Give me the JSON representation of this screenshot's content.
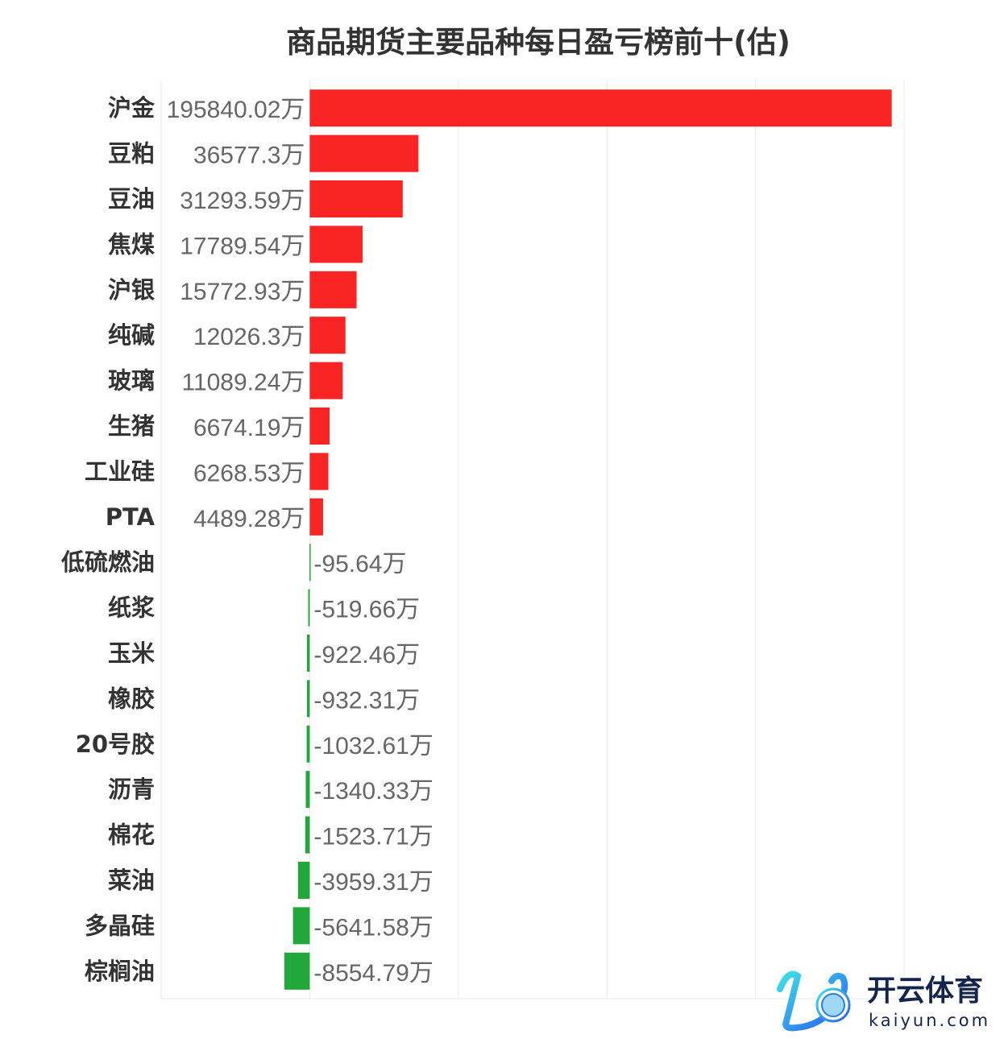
{
  "chart_data": {
    "type": "bar",
    "orientation": "horizontal",
    "title": "商品期货主要品种每日盈亏榜前十(估)",
    "unit_suffix": "万",
    "categories": [
      "沪金",
      "豆粕",
      "豆油",
      "焦煤",
      "沪银",
      "纯碱",
      "玻璃",
      "生猪",
      "工业硅",
      "PTA",
      "低硫燃油",
      "纸浆",
      "玉米",
      "橡胶",
      "20号胶",
      "沥青",
      "棉花",
      "菜油",
      "多晶硅",
      "棕榈油"
    ],
    "values": [
      195840.02,
      36577.3,
      31293.59,
      17789.54,
      15772.93,
      12026.3,
      11089.24,
      6674.19,
      6268.53,
      4489.28,
      -95.64,
      -519.66,
      -922.46,
      -932.31,
      -1032.61,
      -1340.33,
      -1523.71,
      -3959.31,
      -5641.58,
      -8554.79
    ],
    "value_labels": [
      "195840.02万",
      "36577.3万",
      "31293.59万",
      "17789.54万",
      "15772.93万",
      "12026.3万",
      "11089.24万",
      "6674.19万",
      "6268.53万",
      "4489.28万",
      "-95.64万",
      "-519.66万",
      "-922.46万",
      "-932.31万",
      "-1032.61万",
      "-1340.33万",
      "-1523.71万",
      "-3959.31万",
      "-5641.58万",
      "-8554.79万"
    ],
    "xlim": [
      -50000,
      200000
    ],
    "grid": true,
    "colors": {
      "positive": "#f92424",
      "negative": "#22a83a",
      "grid": "#e8e8e8"
    }
  },
  "watermark": {
    "brand": "开云体育",
    "domain": "kaiyun.com"
  }
}
